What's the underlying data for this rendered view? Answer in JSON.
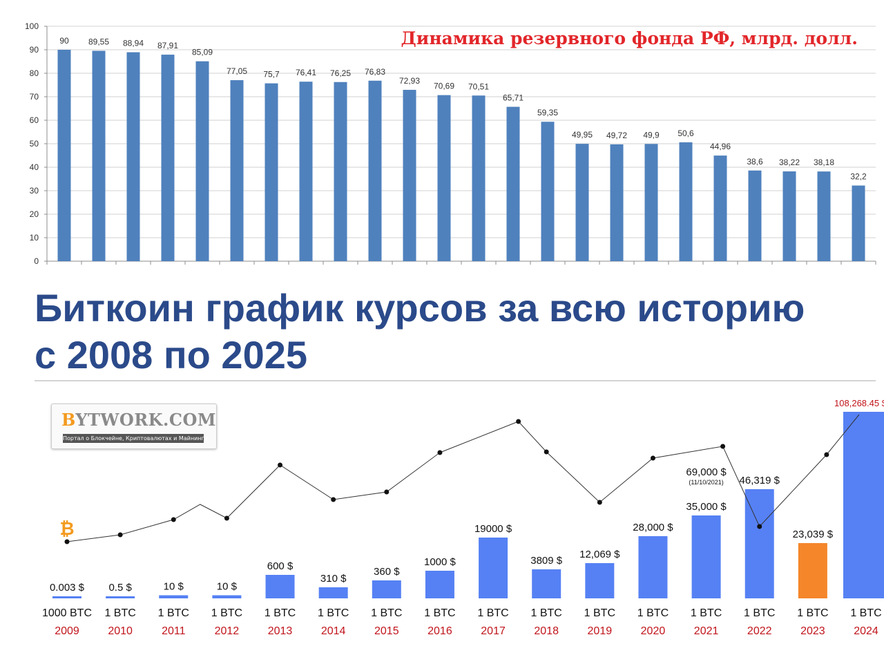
{
  "reserve_chart_title": "Динамика резервного фонда РФ, млрд. долл.",
  "main_title": {
    "line1": "Биткоин график курсов за всю историю",
    "line2": "с 2008 по 2025"
  },
  "logo": {
    "brand_rest": "YTWORK.COM",
    "brand_mark": "B",
    "subtitle": "Портал о Блокчейне, Криптовалютах и Майнинге"
  },
  "colors": {
    "reserve_bar": "#4f81bd",
    "btc_bar": "#5681f4",
    "btc_bar_highlight": "#f5862a",
    "year_label": "#c0141b",
    "title": "#2b4a8a",
    "bitcoin_icon": "#f39a1e"
  },
  "chart_data": [
    {
      "type": "bar",
      "title": "Динамика резервного фонда РФ, млрд. долл.",
      "xlabel": "",
      "ylabel": "",
      "ylim": [
        0,
        100
      ],
      "yticks": [
        0,
        10,
        20,
        30,
        40,
        50,
        60,
        70,
        80,
        90,
        100
      ],
      "grid": true,
      "categories_shown": false,
      "values": [
        90,
        89.55,
        88.94,
        87.91,
        85.09,
        77.05,
        75.7,
        76.41,
        76.25,
        76.83,
        72.93,
        70.69,
        70.51,
        65.71,
        59.35,
        49.95,
        49.72,
        49.9,
        50.6,
        44.96,
        38.6,
        38.22,
        38.18,
        32.2
      ],
      "data_labels": [
        "90",
        "89,55",
        "88,94",
        "87,91",
        "85,09",
        "77,05",
        "75,7",
        "76,41",
        "76,25",
        "76,83",
        "72,93",
        "70,69",
        "70,51",
        "65,71",
        "59,35",
        "49,95",
        "49,72",
        "49,9",
        "50,6",
        "44,96",
        "38,6",
        "38,22",
        "38,18",
        "32,2"
      ]
    },
    {
      "type": "bar",
      "title": "",
      "xlabel": "",
      "ylabel": "",
      "grid": false,
      "scale": "illustrative (not to scale)",
      "categories": [
        "2009",
        "2010",
        "2011",
        "2012",
        "2013",
        "2014",
        "2015",
        "2016",
        "2017",
        "2018",
        "2019",
        "2020",
        "2021",
        "2022",
        "2023",
        "2024"
      ],
      "values": [
        0.003,
        0.5,
        10,
        10,
        600,
        310,
        360,
        1000,
        19000,
        3809,
        12069,
        28000,
        35000,
        46319,
        23039,
        108268.45
      ],
      "price_labels": [
        "0.003 $",
        "0.5 $",
        "10 $",
        "10 $",
        "600 $",
        "310 $",
        "360 $",
        "1000 $",
        "19000 $",
        "3809 $",
        "12,069 $",
        "28,000 $",
        "35,000 $",
        "46,319 $",
        "23,039 $",
        "108,268.45 $"
      ],
      "unit_labels": [
        "1000 BTC",
        "1 BTC",
        "1 BTC",
        "1 BTC",
        "1 BTC",
        "1 BTC",
        "1 BTC",
        "1 BTC",
        "1 BTC",
        "1 BTC",
        "1 BTC",
        "1 BTC",
        "1 BTC",
        "1 BTC",
        "1 BTC",
        "1 BTC"
      ],
      "highlight_category": "2023",
      "annotations": [
        {
          "category": "2021",
          "text": "69,000 $",
          "note": "(11/10/2021)"
        }
      ],
      "trend_line": true
    }
  ]
}
